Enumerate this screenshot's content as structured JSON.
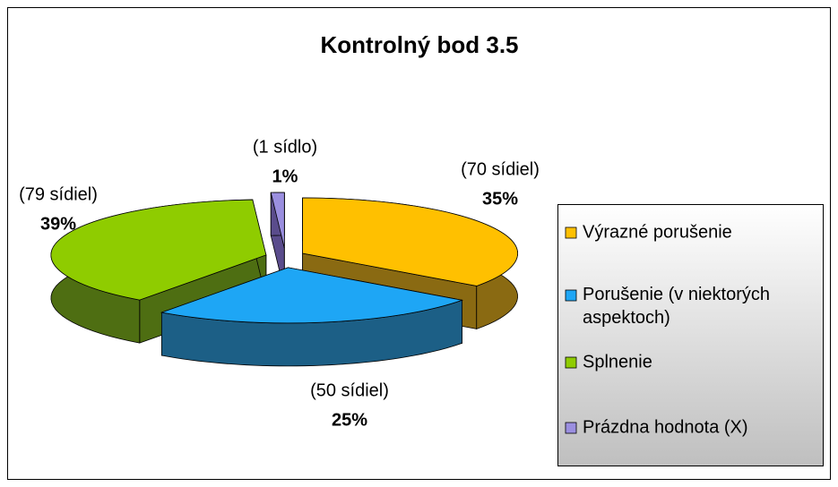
{
  "chart_data": {
    "type": "pie",
    "title": "Kontrolný bod 3.5",
    "categories": [
      "Výrazné porušenie",
      "Porušenie (v niektorých aspektoch)",
      "Splnenie",
      "Prázdna hodnota (X)"
    ],
    "values": [
      35,
      25,
      39,
      1
    ],
    "value_labels": [
      "35%",
      "25%",
      "39%",
      "1%"
    ],
    "count_labels": [
      "(70 sídiel)",
      "(50 sídiel)",
      "(79 sídiel)",
      "(1 sídlo)"
    ],
    "colors": [
      "#ffc000",
      "#1ea6f5",
      "#8fcc00",
      "#9b8fe0"
    ],
    "side_colors": [
      "#8a6a12",
      "#1c5f86",
      "#4e6e12",
      "#5a4c8c"
    ],
    "legend": "right"
  }
}
